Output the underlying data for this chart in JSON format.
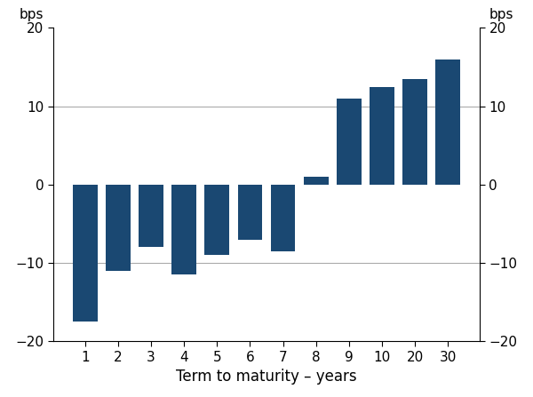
{
  "categories": [
    "1",
    "2",
    "3",
    "4",
    "5",
    "6",
    "7",
    "8",
    "9",
    "10",
    "20",
    "30"
  ],
  "values": [
    -17.5,
    -11.0,
    -8.0,
    -11.5,
    -9.0,
    -7.0,
    -8.5,
    1.0,
    11.0,
    12.5,
    13.5,
    16.0
  ],
  "bar_color": "#1a4872",
  "xlabel": "Term to maturity – years",
  "ylabel_left": "bps",
  "ylabel_right": "bps",
  "ylim": [
    -20,
    20
  ],
  "yticks": [
    -20,
    -10,
    0,
    10,
    20
  ],
  "grid_color": "#aaaaaa",
  "background_color": "#ffffff",
  "figsize": [
    6.0,
    4.47
  ],
  "dpi": 100
}
